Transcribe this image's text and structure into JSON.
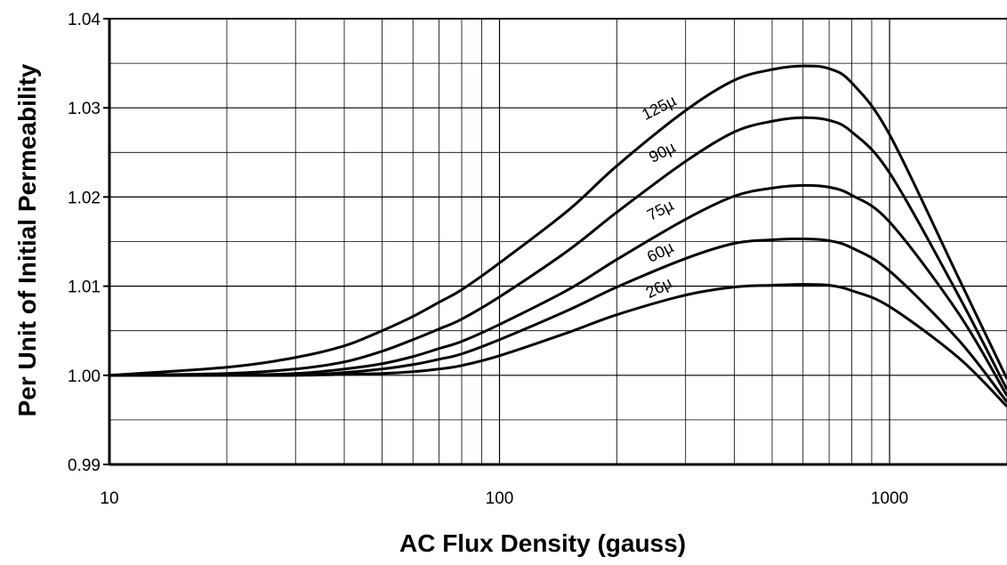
{
  "chart_data": {
    "type": "line",
    "xlabel": "AC Flux Density (gauss)",
    "ylabel": "Per Unit of Initial Permeability",
    "xscale": "log",
    "xlim": [
      10,
      2000
    ],
    "ylim": [
      0.99,
      1.04
    ],
    "grid": true,
    "x_ticks": [
      {
        "value": 10,
        "label": "10"
      },
      {
        "value": 100,
        "label": "100"
      },
      {
        "value": 1000,
        "label": "1000"
      }
    ],
    "y_ticks": [
      {
        "value": 0.99,
        "label": "0.99"
      },
      {
        "value": 1.0,
        "label": "1.00"
      },
      {
        "value": 1.01,
        "label": "1.01"
      },
      {
        "value": 1.02,
        "label": "1.02"
      },
      {
        "value": 1.03,
        "label": "1.03"
      },
      {
        "value": 1.04,
        "label": "1.04"
      }
    ],
    "x": [
      10,
      20,
      30,
      40,
      50,
      60,
      70,
      80,
      100,
      150,
      200,
      300,
      400,
      500,
      600,
      700,
      800,
      1000,
      1500,
      2000
    ],
    "series": [
      {
        "name": "125µ",
        "values": [
          1.0,
          1.0009,
          1.002,
          1.0033,
          1.005,
          1.0066,
          1.0082,
          1.0096,
          1.0126,
          1.0185,
          1.0235,
          1.0297,
          1.0331,
          1.0343,
          1.0347,
          1.0344,
          1.0328,
          1.027,
          1.011,
          0.9996
        ]
      },
      {
        "name": "90µ",
        "values": [
          1.0,
          1.0002,
          1.0007,
          1.0015,
          1.0027,
          1.004,
          1.0052,
          1.0063,
          1.0088,
          1.014,
          1.0183,
          1.024,
          1.0273,
          1.0285,
          1.0289,
          1.0286,
          1.0273,
          1.0227,
          1.009,
          0.9984
        ]
      },
      {
        "name": "75µ",
        "values": [
          1.0,
          1.0,
          1.0002,
          1.0007,
          1.0013,
          1.0021,
          1.003,
          1.0038,
          1.0057,
          1.0096,
          1.013,
          1.0175,
          1.0201,
          1.021,
          1.0213,
          1.0211,
          1.0202,
          1.0172,
          1.007,
          0.9977
        ]
      },
      {
        "name": "60µ",
        "values": [
          1.0,
          1.0,
          1.0,
          1.0003,
          1.0007,
          1.0012,
          1.0018,
          1.0024,
          1.004,
          1.0073,
          1.0099,
          1.0131,
          1.0148,
          1.0152,
          1.0153,
          1.0151,
          1.0143,
          1.0117,
          1.004,
          0.997
        ]
      },
      {
        "name": "26µ",
        "values": [
          1.0,
          1.0,
          1.0,
          1.0001,
          1.0002,
          1.0004,
          1.0007,
          1.0011,
          1.0022,
          1.0048,
          1.0068,
          1.009,
          1.0099,
          1.0101,
          1.0102,
          1.0101,
          1.0095,
          1.0077,
          1.002,
          0.9965
        ]
      }
    ],
    "curve_labels": [
      {
        "text": "125µ",
        "x": 260,
        "y": 1.0295
      },
      {
        "text": "90µ",
        "x": 265,
        "y": 1.0245
      },
      {
        "text": "75µ",
        "x": 262,
        "y": 1.018
      },
      {
        "text": "60µ",
        "x": 262,
        "y": 1.0133
      },
      {
        "text": "26µ",
        "x": 260,
        "y": 1.0093
      }
    ]
  }
}
